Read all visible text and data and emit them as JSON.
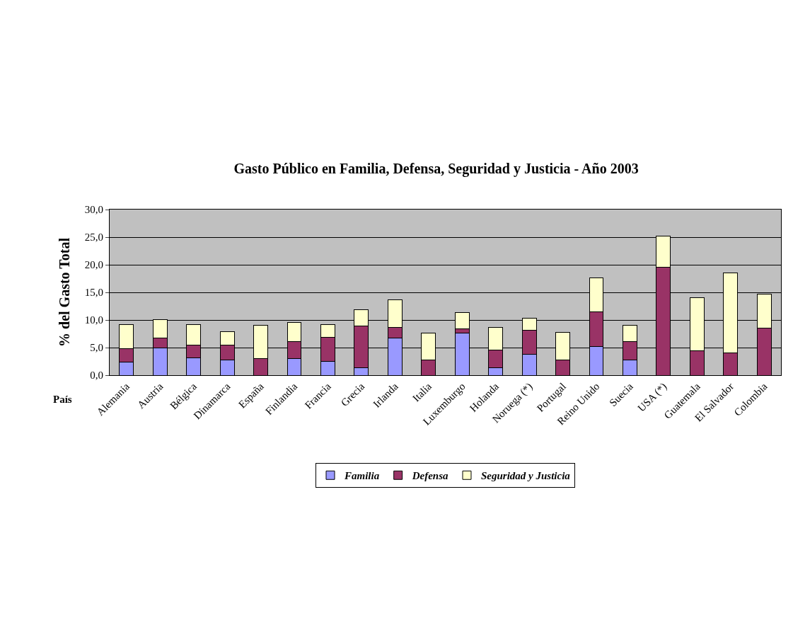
{
  "chart_data": {
    "type": "bar",
    "stacked": true,
    "title": "Gasto Público en Familia, Defensa, Seguridad y Justicia - Año 2003",
    "xlabel": "País",
    "ylabel": "% del Gasto Total",
    "categories": [
      "Alemania",
      "Austria",
      "Bélgica",
      "Dinamarca",
      "España",
      "Finlandia",
      "Francia",
      "Grecia",
      "Irlanda",
      "Italia",
      "Luxemburgo",
      "Holanda",
      "Noruega (*)",
      "Portugal",
      "Reino Unido",
      "Suecia",
      "USA (*)",
      "Guatemala",
      "El Salvador",
      "Colombia"
    ],
    "series": [
      {
        "name": "Familia",
        "color": "#9999ff",
        "values": [
          2.4,
          4.9,
          3.1,
          2.7,
          0,
          3.0,
          2.5,
          1.4,
          6.7,
          0,
          7.6,
          1.4,
          3.8,
          0,
          5.2,
          2.7,
          0,
          0,
          0,
          0
        ]
      },
      {
        "name": "Defensa",
        "color": "#993366",
        "values": [
          2.4,
          1.8,
          2.3,
          2.8,
          3.0,
          3.1,
          4.3,
          7.5,
          2.0,
          2.7,
          0.8,
          3.2,
          4.3,
          2.7,
          6.3,
          3.4,
          19.5,
          4.4,
          4.1,
          8.5
        ]
      },
      {
        "name": "Seguridad y Justicia",
        "color": "#ffffcc",
        "values": [
          4.4,
          3.4,
          3.8,
          2.4,
          6.0,
          3.4,
          2.4,
          3.0,
          4.9,
          4.9,
          2.9,
          4.0,
          2.2,
          5.1,
          6.1,
          3.0,
          5.7,
          9.6,
          14.4,
          6.2
        ]
      }
    ],
    "ylim": [
      0,
      30
    ],
    "yticks": [
      {
        "value": 0,
        "label": "0,0"
      },
      {
        "value": 5,
        "label": "5,0"
      },
      {
        "value": 10,
        "label": "10,0"
      },
      {
        "value": 15,
        "label": "15,0"
      },
      {
        "value": 20,
        "label": "20,0"
      },
      {
        "value": 25,
        "label": "25,0"
      },
      {
        "value": 30,
        "label": "30,0"
      }
    ],
    "grid": "y",
    "legend": "bottom"
  }
}
